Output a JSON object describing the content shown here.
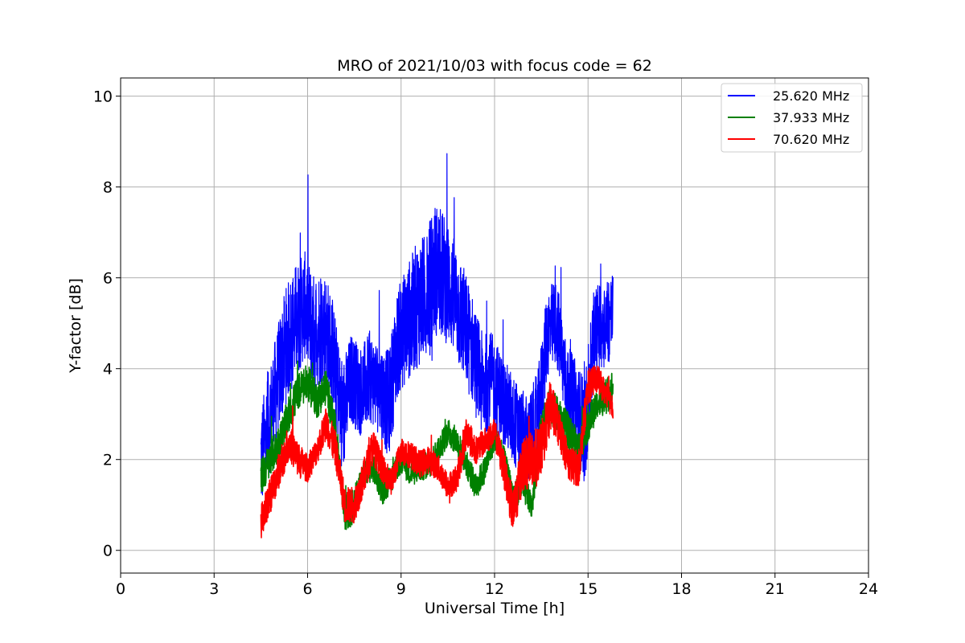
{
  "chart_data": {
    "type": "line",
    "title": "MRO of 2021/10/03 with focus code = 62",
    "xlabel": "Universal Time [h]",
    "ylabel": "Y-factor [dB]",
    "xlim": [
      0,
      24
    ],
    "ylim": [
      -0.5,
      10.4
    ],
    "xticks": [
      0,
      3,
      6,
      9,
      12,
      15,
      18,
      21,
      24
    ],
    "yticks": [
      0,
      2,
      4,
      6,
      8,
      10
    ],
    "grid": true,
    "legend_position": "top-right",
    "series": [
      {
        "name": "25.620 MHz",
        "color": "#0000ff",
        "x": [
          4.5,
          4.7,
          5.0,
          5.3,
          5.6,
          5.9,
          6.2,
          6.5,
          6.8,
          7.1,
          7.4,
          7.7,
          8.0,
          8.3,
          8.6,
          8.9,
          9.2,
          9.5,
          9.8,
          10.1,
          10.4,
          10.7,
          11.0,
          11.3,
          11.6,
          11.9,
          12.2,
          12.5,
          12.8,
          13.1,
          13.4,
          13.7,
          14.0,
          14.3,
          14.6,
          14.9,
          15.2,
          15.5,
          15.8
        ],
        "y": [
          2.0,
          2.6,
          3.6,
          4.5,
          5.0,
          5.4,
          4.8,
          5.0,
          4.4,
          2.8,
          3.8,
          3.5,
          3.8,
          3.6,
          3.2,
          4.6,
          5.0,
          5.4,
          5.6,
          6.2,
          6.0,
          5.6,
          5.0,
          4.4,
          3.6,
          3.8,
          3.4,
          3.0,
          2.6,
          2.4,
          3.0,
          4.8,
          5.0,
          3.6,
          3.2,
          2.6,
          4.8,
          5.0,
          5.2
        ],
        "noise": [
          1.2,
          1.2,
          1.2,
          1.3,
          1.3,
          1.2,
          1.3,
          1.3,
          1.2,
          1.3,
          1.0,
          1.0,
          1.0,
          1.0,
          1.2,
          1.2,
          1.3,
          1.4,
          1.4,
          1.5,
          1.4,
          1.3,
          1.3,
          1.2,
          1.2,
          1.0,
          1.0,
          1.0,
          1.0,
          1.0,
          1.0,
          1.0,
          1.0,
          1.0,
          1.0,
          1.2,
          1.0,
          1.0,
          1.0
        ]
      },
      {
        "name": "37.933 MHz",
        "color": "#008000",
        "x": [
          4.5,
          4.8,
          5.1,
          5.4,
          5.7,
          6.0,
          6.3,
          6.6,
          6.9,
          7.2,
          7.5,
          7.8,
          8.1,
          8.4,
          8.7,
          9.0,
          9.3,
          9.6,
          9.9,
          10.2,
          10.5,
          10.8,
          11.1,
          11.4,
          11.7,
          12.0,
          12.3,
          12.6,
          12.9,
          13.2,
          13.5,
          13.8,
          14.1,
          14.4,
          14.7,
          15.0,
          15.3,
          15.6,
          15.8
        ],
        "y": [
          1.6,
          2.0,
          2.4,
          3.0,
          3.5,
          3.7,
          3.3,
          3.6,
          2.6,
          0.8,
          1.0,
          1.7,
          1.8,
          1.3,
          1.6,
          2.0,
          1.7,
          1.8,
          1.9,
          2.2,
          2.6,
          2.4,
          1.9,
          1.4,
          1.8,
          2.5,
          2.0,
          1.2,
          1.4,
          1.0,
          2.8,
          3.2,
          2.9,
          2.6,
          2.2,
          2.8,
          3.2,
          3.4,
          3.6
        ],
        "noise": [
          0.4,
          0.4,
          0.4,
          0.4,
          0.4,
          0.4,
          0.4,
          0.4,
          0.4,
          0.4,
          0.4,
          0.3,
          0.3,
          0.3,
          0.3,
          0.3,
          0.3,
          0.3,
          0.3,
          0.3,
          0.3,
          0.3,
          0.3,
          0.3,
          0.3,
          0.3,
          0.3,
          0.3,
          0.3,
          0.3,
          0.4,
          0.4,
          0.4,
          0.4,
          0.4,
          0.4,
          0.3,
          0.4,
          0.4
        ]
      },
      {
        "name": "70.620 MHz",
        "color": "#ff0000",
        "x": [
          4.5,
          4.8,
          5.1,
          5.4,
          5.7,
          6.0,
          6.3,
          6.6,
          6.9,
          7.2,
          7.5,
          7.8,
          8.1,
          8.4,
          8.7,
          9.0,
          9.3,
          9.6,
          9.9,
          10.2,
          10.5,
          10.8,
          11.1,
          11.4,
          11.7,
          12.0,
          12.3,
          12.6,
          12.9,
          13.2,
          13.5,
          13.8,
          14.1,
          14.4,
          14.7,
          15.0,
          15.3,
          15.6,
          15.8
        ],
        "y": [
          0.6,
          1.2,
          1.8,
          2.4,
          2.0,
          1.8,
          2.2,
          2.8,
          2.2,
          1.0,
          1.0,
          1.6,
          2.3,
          1.8,
          1.5,
          2.2,
          2.1,
          1.9,
          2.0,
          1.8,
          1.4,
          1.6,
          2.6,
          2.2,
          2.4,
          2.6,
          1.8,
          0.8,
          1.9,
          2.0,
          2.2,
          3.2,
          2.6,
          1.9,
          1.8,
          3.6,
          3.8,
          3.4,
          3.2
        ],
        "noise": [
          0.4,
          0.4,
          0.4,
          0.4,
          0.4,
          0.3,
          0.3,
          0.4,
          0.4,
          0.4,
          0.4,
          0.4,
          0.4,
          0.3,
          0.3,
          0.3,
          0.3,
          0.3,
          0.3,
          0.3,
          0.3,
          0.3,
          0.4,
          0.3,
          0.3,
          0.3,
          0.4,
          0.5,
          0.6,
          0.6,
          0.6,
          0.6,
          0.4,
          0.4,
          0.4,
          0.4,
          0.3,
          0.3,
          0.3
        ]
      }
    ]
  }
}
